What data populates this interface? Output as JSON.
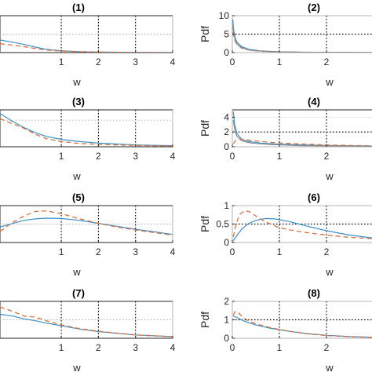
{
  "chart_data": [
    {
      "type": "line",
      "title": "(1)",
      "xlabel": "w",
      "ylabel": "",
      "xlim": [
        -0.65,
        4
      ],
      "ylim": [
        0,
        10
      ],
      "xticks": [
        1,
        2,
        3,
        4
      ],
      "yticks": [],
      "grid": true,
      "reference": {
        "style": "dotted-horizontal",
        "y": 5
      },
      "series": [
        {
          "style": "solid",
          "color": "#3b8fc9",
          "x": [
            -0.65,
            -0.3,
            0,
            0.3,
            0.6,
            1,
            1.5,
            2,
            3,
            4
          ],
          "y": [
            3.4,
            2.8,
            2.2,
            1.5,
            0.9,
            0.5,
            0.25,
            0.15,
            0.07,
            0.04
          ]
        },
        {
          "style": "dashed",
          "color": "#d9703a",
          "x": [
            -0.65,
            -0.3,
            0,
            0.3,
            0.6,
            1,
            1.5,
            2,
            3,
            4
          ],
          "y": [
            2.4,
            2.0,
            1.6,
            1.1,
            0.7,
            0.4,
            0.22,
            0.13,
            0.06,
            0.03
          ]
        }
      ]
    },
    {
      "type": "line",
      "title": "(2)",
      "xlabel": "w",
      "ylabel": "Pdf",
      "xlim": [
        0,
        3.0
      ],
      "ylim": [
        0,
        10
      ],
      "xticks": [
        0,
        1,
        2
      ],
      "yticks": [
        0,
        5,
        10
      ],
      "grid": true,
      "reference": {
        "style": "dotted-horizontal",
        "y": 5
      },
      "series": [
        {
          "style": "solid",
          "color": "#3b8fc9",
          "x": [
            0.01,
            0.03,
            0.06,
            0.1,
            0.2,
            0.35,
            0.6,
            1,
            1.5,
            2,
            3
          ],
          "y": [
            9.0,
            6.0,
            4.0,
            2.8,
            1.6,
            0.9,
            0.45,
            0.22,
            0.1,
            0.06,
            0.03
          ]
        },
        {
          "style": "dashed",
          "color": "#d9703a",
          "x": [
            0.01,
            0.03,
            0.06,
            0.1,
            0.2,
            0.35,
            0.6,
            1,
            1.5,
            2,
            3
          ],
          "y": [
            5.5,
            4.5,
            3.2,
            2.2,
            1.2,
            0.7,
            0.35,
            0.18,
            0.08,
            0.05,
            0.02
          ]
        },
        {
          "style": "solid",
          "color": "#8a8a8a",
          "x": [
            0.01,
            0.03,
            0.06,
            0.1,
            0.2,
            0.4,
            0.8,
            1.5,
            3
          ],
          "y": [
            7.2,
            5.0,
            3.4,
            2.3,
            1.3,
            0.6,
            0.25,
            0.08,
            0.02
          ]
        }
      ]
    },
    {
      "type": "line",
      "title": "(3)",
      "xlabel": "w",
      "ylabel": "",
      "xlim": [
        -0.65,
        4
      ],
      "ylim": [
        0,
        5
      ],
      "xticks": [
        1,
        2,
        3,
        4
      ],
      "yticks": [],
      "grid": true,
      "reference": {
        "style": "dotted-horizontal",
        "y": 3.6
      },
      "series": [
        {
          "style": "solid",
          "color": "#3b8fc9",
          "x": [
            -0.65,
            -0.3,
            0,
            0.3,
            0.6,
            1,
            1.5,
            2,
            3,
            4
          ],
          "y": [
            4.5,
            3.4,
            2.6,
            1.9,
            1.4,
            1.0,
            0.7,
            0.5,
            0.25,
            0.15
          ]
        },
        {
          "style": "dashed",
          "color": "#d9703a",
          "x": [
            -0.65,
            -0.3,
            0,
            0.3,
            0.6,
            1,
            1.5,
            2,
            3,
            4
          ],
          "y": [
            3.8,
            3.1,
            2.5,
            1.7,
            1.1,
            0.7,
            0.45,
            0.32,
            0.18,
            0.1
          ]
        }
      ]
    },
    {
      "type": "line",
      "title": "(4)",
      "xlabel": "w",
      "ylabel": "Pdf",
      "xlim": [
        0,
        3.0
      ],
      "ylim": [
        0,
        5
      ],
      "xticks": [
        0,
        1,
        2
      ],
      "yticks": [
        0,
        2,
        4
      ],
      "grid": true,
      "reference": {
        "style": "dotted-horizontal",
        "y": 2
      },
      "series": [
        {
          "style": "solid",
          "color": "#3b8fc9",
          "x": [
            0.02,
            0.05,
            0.1,
            0.2,
            0.35,
            0.6,
            1,
            1.5,
            2,
            3
          ],
          "y": [
            4.8,
            3.0,
            1.8,
            1.0,
            0.7,
            0.5,
            0.35,
            0.25,
            0.18,
            0.1
          ]
        },
        {
          "style": "dashed",
          "color": "#d9703a",
          "x": [
            0.02,
            0.08,
            0.15,
            0.3,
            0.5,
            0.8,
            1.2,
            2,
            3
          ],
          "y": [
            0.4,
            0.9,
            1.05,
            0.95,
            0.8,
            0.6,
            0.45,
            0.25,
            0.12
          ]
        },
        {
          "style": "solid",
          "color": "#8a8a8a",
          "x": [
            0.02,
            0.05,
            0.1,
            0.2,
            0.4,
            0.8,
            1.5,
            3
          ],
          "y": [
            3.6,
            2.3,
            1.4,
            0.8,
            0.5,
            0.3,
            0.15,
            0.06
          ]
        }
      ]
    },
    {
      "type": "line",
      "title": "(5)",
      "xlabel": "w",
      "ylabel": "",
      "xlim": [
        -0.65,
        4
      ],
      "ylim": [
        0,
        1
      ],
      "xticks": [
        1,
        2,
        3,
        4
      ],
      "yticks": [],
      "grid": true,
      "reference": {
        "style": "dotted-horizontal",
        "y": 0.5
      },
      "series": [
        {
          "style": "solid",
          "color": "#3b8fc9",
          "x": [
            -0.65,
            -0.3,
            0,
            0.3,
            0.6,
            1,
            1.5,
            2,
            2.5,
            3,
            3.5,
            4
          ],
          "y": [
            0.42,
            0.52,
            0.6,
            0.64,
            0.66,
            0.65,
            0.6,
            0.52,
            0.44,
            0.36,
            0.29,
            0.22
          ]
        },
        {
          "style": "dashed",
          "color": "#d9703a",
          "x": [
            -0.65,
            -0.3,
            0,
            0.3,
            0.6,
            1,
            1.5,
            2,
            2.5,
            3,
            3.5,
            4
          ],
          "y": [
            0.3,
            0.55,
            0.72,
            0.84,
            0.86,
            0.78,
            0.64,
            0.52,
            0.42,
            0.34,
            0.27,
            0.2
          ]
        }
      ]
    },
    {
      "type": "line",
      "title": "(6)",
      "xlabel": "w",
      "ylabel": "Pdf",
      "xlim": [
        0,
        3.0
      ],
      "ylim": [
        0,
        1
      ],
      "xticks": [
        0,
        1,
        2
      ],
      "yticks": [
        0,
        0.5,
        1
      ],
      "grid": true,
      "reference": {
        "style": "dotted-horizontal",
        "y": 0.5
      },
      "series": [
        {
          "style": "solid",
          "color": "#3b8fc9",
          "x": [
            0.02,
            0.1,
            0.2,
            0.35,
            0.5,
            0.7,
            0.9,
            1.2,
            1.6,
            2,
            2.5,
            3
          ],
          "y": [
            0.05,
            0.2,
            0.36,
            0.52,
            0.6,
            0.65,
            0.64,
            0.57,
            0.44,
            0.32,
            0.2,
            0.12
          ]
        },
        {
          "style": "dashed",
          "color": "#d9703a",
          "x": [
            0.02,
            0.08,
            0.15,
            0.25,
            0.35,
            0.5,
            0.7,
            1,
            1.4,
            2,
            2.5,
            3
          ],
          "y": [
            0.15,
            0.5,
            0.75,
            0.86,
            0.84,
            0.72,
            0.56,
            0.4,
            0.3,
            0.2,
            0.14,
            0.1
          ]
        }
      ]
    },
    {
      "type": "line",
      "title": "(7)",
      "xlabel": "w",
      "ylabel": "",
      "xlim": [
        -0.65,
        4
      ],
      "ylim": [
        0,
        2
      ],
      "xticks": [
        1,
        2,
        3,
        4
      ],
      "yticks": [],
      "grid": true,
      "reference": {
        "style": "dotted-horizontal",
        "y": 1
      },
      "series": [
        {
          "style": "solid",
          "color": "#3b8fc9",
          "x": [
            -0.65,
            -0.3,
            0,
            0.3,
            0.6,
            1,
            1.5,
            2,
            3,
            4
          ],
          "y": [
            1.3,
            1.2,
            1.05,
            0.95,
            0.82,
            0.68,
            0.5,
            0.36,
            0.18,
            0.09
          ]
        },
        {
          "style": "dashed",
          "color": "#d9703a",
          "x": [
            -0.65,
            -0.3,
            0,
            0.3,
            0.6,
            1,
            1.5,
            2,
            3,
            4
          ],
          "y": [
            1.7,
            1.45,
            1.2,
            1.15,
            0.95,
            0.72,
            0.52,
            0.38,
            0.18,
            0.08
          ]
        }
      ]
    },
    {
      "type": "line",
      "title": "(8)",
      "xlabel": "w",
      "ylabel": "Pdf",
      "xlim": [
        0,
        3.0
      ],
      "ylim": [
        0,
        2
      ],
      "xticks": [
        0,
        1,
        2
      ],
      "yticks": [
        0,
        1,
        2
      ],
      "grid": true,
      "reference": {
        "style": "dotted-horizontal",
        "y": 1
      },
      "series": [
        {
          "style": "solid",
          "color": "#3b8fc9",
          "x": [
            0.02,
            0.08,
            0.15,
            0.3,
            0.5,
            0.8,
            1.2,
            1.6,
            2,
            2.5,
            3
          ],
          "y": [
            1.2,
            1.15,
            1.05,
            0.88,
            0.72,
            0.55,
            0.38,
            0.25,
            0.16,
            0.09,
            0.05
          ]
        },
        {
          "style": "dashed",
          "color": "#d9703a",
          "x": [
            0.02,
            0.06,
            0.12,
            0.2,
            0.3,
            0.5,
            0.8,
            1.2,
            1.6,
            2,
            2.5,
            3
          ],
          "y": [
            1.25,
            1.45,
            1.4,
            1.2,
            1.0,
            0.78,
            0.58,
            0.38,
            0.24,
            0.15,
            0.08,
            0.04
          ]
        }
      ]
    }
  ]
}
